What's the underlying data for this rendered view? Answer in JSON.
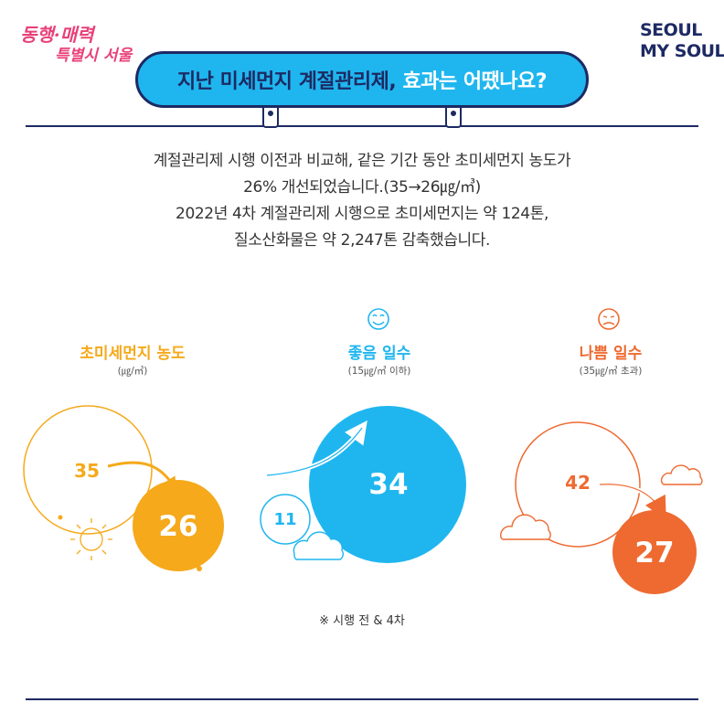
{
  "logo_left": {
    "line1": "동행·매력",
    "line2": "특별시 서울"
  },
  "logo_right": {
    "line1": "SEOUL",
    "line2": "MY SOUL"
  },
  "title": {
    "main": "지난 미세먼지 계절관리제,",
    "highlight": "효과는 어땠나요?"
  },
  "description": [
    "계절관리제 시행 이전과 비교해, 같은 기간 동안 초미세먼지 농도가",
    "26% 개선되었습니다.(35→26㎍/㎥)",
    "2022년 4차 계절관리제 시행으로 초미세먼지는 약 124톤,",
    "질소산화물은 약 2,247톤 감축했습니다."
  ],
  "stats": [
    {
      "label": "초미세먼지 농도",
      "unit": "(㎍/㎥)",
      "before": "35",
      "after": "26",
      "color": "#f5a91b",
      "icon": "sun-icon"
    },
    {
      "label": "좋음 일수",
      "unit": "(15㎍/㎥ 이하)",
      "before": "11",
      "after": "34",
      "color": "#1fb6ef",
      "icon": "smile-face-icon"
    },
    {
      "label": "나쁨 일수",
      "unit": "(35㎍/㎥ 초과)",
      "before": "42",
      "after": "27",
      "color": "#ee6a31",
      "icon": "sad-face-icon"
    }
  ],
  "note": "※ 시행 전 & 4차",
  "colors": {
    "navy": "#1d2a63",
    "sky": "#1fb6ef",
    "yellow": "#f5a91b",
    "orange": "#ee6a31",
    "pink": "#e8417a"
  }
}
